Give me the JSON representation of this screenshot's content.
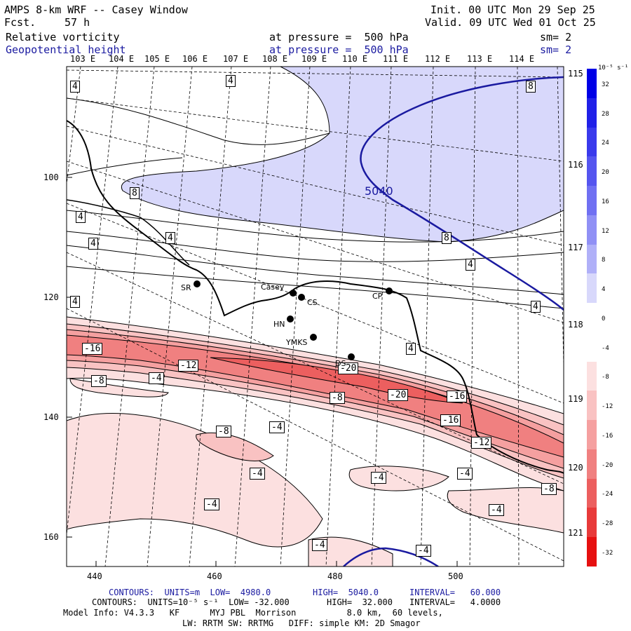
{
  "header": {
    "title": "AMPS 8-km WRF -- Casey Window",
    "fcst_label": "Fcst.",
    "fcst_value": "57 h",
    "init": "Init. 00 UTC Mon 29 Sep 25",
    "valid": "Valid. 09 UTC Wed 01 Oct 25",
    "field1": "Relative vorticity",
    "field1_level": "at pressure =  500 hPa",
    "field1_sm": "sm= 2",
    "field2": "Geopotential height",
    "field2_level": "at pressure =  500 hPa",
    "field2_sm": "sm= 2"
  },
  "lon_labels": [
    "103 E",
    "104 E",
    "105 E",
    "106 E",
    "107 E",
    "108 E",
    "109 E",
    "110 E",
    "111 E",
    "112 E",
    "113 E",
    "114 E"
  ],
  "lat_labels": [
    "115 E",
    "116 E",
    "117 E",
    "118 E",
    "119 E",
    "120 E",
    "121 E"
  ],
  "x_ticks": [
    "440",
    "460",
    "480",
    "500"
  ],
  "y_ticks": [
    "100",
    "120",
    "140",
    "160"
  ],
  "colorbar": {
    "unit": "10⁻⁵ s⁻¹",
    "labels": [
      "32",
      "28",
      "24",
      "20",
      "16",
      "12",
      "8",
      "4",
      "0",
      "-4",
      "-8",
      "-12",
      "-16",
      "-20",
      "-24",
      "-28",
      "-32"
    ],
    "colors": [
      "#0000e6",
      "#2020e8",
      "#3a3aec",
      "#5555ef",
      "#7070f2",
      "#9090f5",
      "#b0b0f8",
      "#d8d8fb",
      "#ffffff",
      "#ffffff",
      "#fce0e0",
      "#f9c2c2",
      "#f5a0a0",
      "#f08080",
      "#ec5f5f",
      "#e83a3a",
      "#e61010"
    ]
  },
  "contour_labels": [
    "4",
    "4",
    "4",
    "4",
    "4",
    "4",
    "4",
    "4",
    "4",
    "8",
    "8",
    "8",
    "-16",
    "-12",
    "-8",
    "-4",
    "-20",
    "-20",
    "-16",
    "-8",
    "-8",
    "-4",
    "-16",
    "-12",
    "-4",
    "-4",
    "-4",
    "-8",
    "-4",
    "-4",
    "-4",
    "-4",
    "5040"
  ],
  "stations": [
    "SR",
    "Casey",
    "CS",
    "CP",
    "HN",
    "YMKS",
    "DS"
  ],
  "footer": {
    "line1_contours": "CONTOURS:  UNITS=m  LOW=  4980.0",
    "line1_high": "HIGH=  5040.0",
    "line1_interval": "INTERVAL=   60.000",
    "line2_contours": "CONTOURS:  UNITS=10⁻⁵ s⁻¹  LOW= -32.000",
    "line2_high": "HIGH=  32.000",
    "line2_interval": "INTERVAL=   4.0000",
    "line3": "Model Info: V4.3.3   KF      MYJ PBL  Morrison          8.0 km,  60 levels,",
    "line4": "LW: RRTM SW: RRTMG   DIFF: simple KM: 2D Smagor"
  }
}
